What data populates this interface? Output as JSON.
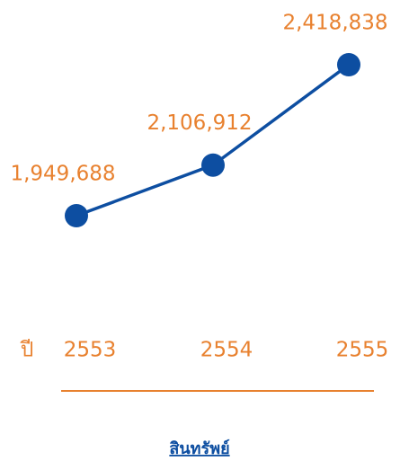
{
  "chart_data": {
    "type": "line",
    "title": "สินทรัพย์",
    "x_label": "ปี",
    "categories": [
      "2553",
      "2554",
      "2555"
    ],
    "values": [
      1949688,
      2106912,
      2418838
    ],
    "value_labels": [
      "1,949,688",
      "2,106,912",
      "2,418,838"
    ],
    "color": "#0d4ea1",
    "label_color": "#e8812f"
  }
}
